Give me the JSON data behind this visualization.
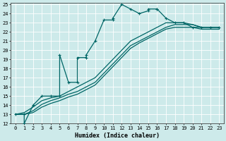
{
  "xlabel": "Humidex (Indice chaleur)",
  "bg_color": "#cdeaea",
  "grid_color": "#aacccc",
  "line_color": "#006666",
  "xlim": [
    -0.5,
    23.5
  ],
  "ylim": [
    12,
    25.2
  ],
  "yticks": [
    12,
    13,
    14,
    15,
    16,
    17,
    18,
    19,
    20,
    21,
    22,
    23,
    24,
    25
  ],
  "xticks": [
    0,
    1,
    2,
    3,
    4,
    5,
    6,
    7,
    8,
    9,
    10,
    11,
    12,
    13,
    14,
    15,
    16,
    17,
    18,
    19,
    20,
    21,
    22,
    23
  ],
  "line1_x": [
    0,
    1,
    1,
    2,
    3,
    4,
    5,
    5,
    6,
    7,
    7,
    8,
    8,
    9,
    10,
    11,
    11,
    12,
    13,
    14,
    15,
    15,
    16,
    16,
    17,
    18,
    19,
    20,
    21,
    22,
    23
  ],
  "line1_y": [
    13,
    13,
    12,
    14,
    15,
    15,
    15,
    19.5,
    16.5,
    16.5,
    19.2,
    19.2,
    19.5,
    21,
    23.3,
    23.3,
    23.5,
    25,
    24.5,
    24,
    24.3,
    24.5,
    24.5,
    24.5,
    23.5,
    23,
    23,
    22.5,
    22.5,
    22.5,
    22.5
  ],
  "line2_x": [
    0,
    1,
    2,
    3,
    4,
    5,
    6,
    7,
    8,
    9,
    10,
    11,
    12,
    13,
    14,
    15,
    16,
    17,
    18,
    19,
    20,
    21,
    22,
    23
  ],
  "line2_y": [
    13,
    13.2,
    13.8,
    14.5,
    14.8,
    15,
    15.5,
    16,
    16.5,
    17,
    18,
    19,
    20,
    21,
    21.5,
    22,
    22.5,
    23,
    23,
    23,
    22.8,
    22.5,
    22.5,
    22.5
  ],
  "line3_x": [
    0,
    1,
    2,
    3,
    4,
    5,
    6,
    7,
    8,
    9,
    10,
    11,
    12,
    13,
    14,
    15,
    16,
    17,
    18,
    19,
    20,
    21,
    22,
    23
  ],
  "line3_y": [
    13,
    13.0,
    13.4,
    14.1,
    14.5,
    14.8,
    15.2,
    15.5,
    16,
    16.5,
    17.5,
    18.5,
    19.5,
    20.5,
    21,
    21.5,
    22,
    22.5,
    22.8,
    22.8,
    22.8,
    22.5,
    22.5,
    22.5
  ],
  "line4_x": [
    0,
    1,
    2,
    3,
    4,
    5,
    6,
    7,
    8,
    9,
    10,
    11,
    12,
    13,
    14,
    15,
    16,
    17,
    18,
    19,
    20,
    21,
    22,
    23
  ],
  "line4_y": [
    13,
    13.0,
    13.2,
    13.8,
    14.2,
    14.5,
    14.9,
    15.2,
    15.7,
    16.2,
    17.2,
    18.2,
    19.2,
    20.2,
    20.8,
    21.3,
    21.8,
    22.3,
    22.5,
    22.5,
    22.5,
    22.3,
    22.3,
    22.3
  ]
}
